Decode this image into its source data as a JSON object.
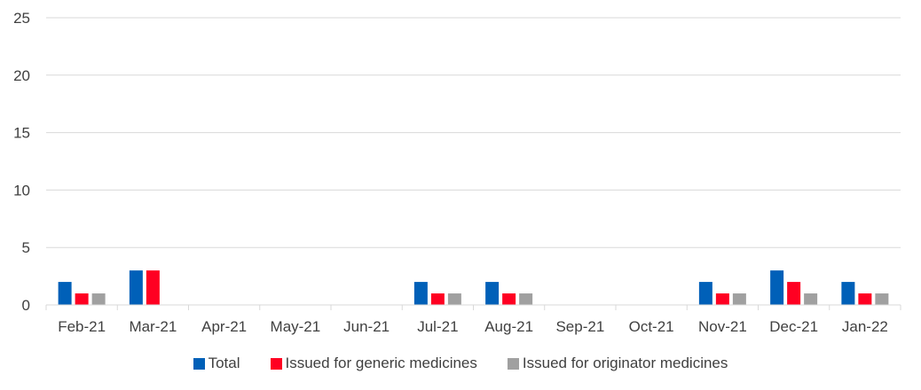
{
  "chart_data": {
    "type": "bar",
    "title": "",
    "xlabel": "",
    "ylabel": "",
    "ylim": [
      0,
      25
    ],
    "yticks": [
      0,
      5,
      10,
      15,
      20,
      25
    ],
    "grid": true,
    "legend_position": "bottom",
    "categories": [
      "Feb-21",
      "Mar-21",
      "Apr-21",
      "May-21",
      "Jun-21",
      "Jul-21",
      "Aug-21",
      "Sep-21",
      "Oct-21",
      "Nov-21",
      "Dec-21",
      "Jan-22"
    ],
    "series": [
      {
        "name": "Total",
        "color": "#0060B8",
        "values": [
          2,
          3,
          0,
          0,
          0,
          2,
          2,
          0,
          0,
          2,
          3,
          2
        ]
      },
      {
        "name": "Issued for generic medicines",
        "color": "#FF0022",
        "values": [
          1,
          3,
          0,
          0,
          0,
          1,
          1,
          0,
          0,
          1,
          2,
          1
        ]
      },
      {
        "name": "Issued for originator medicines",
        "color": "#A0A0A0",
        "values": [
          1,
          0,
          0,
          0,
          0,
          1,
          1,
          0,
          0,
          1,
          1,
          1
        ]
      }
    ]
  }
}
